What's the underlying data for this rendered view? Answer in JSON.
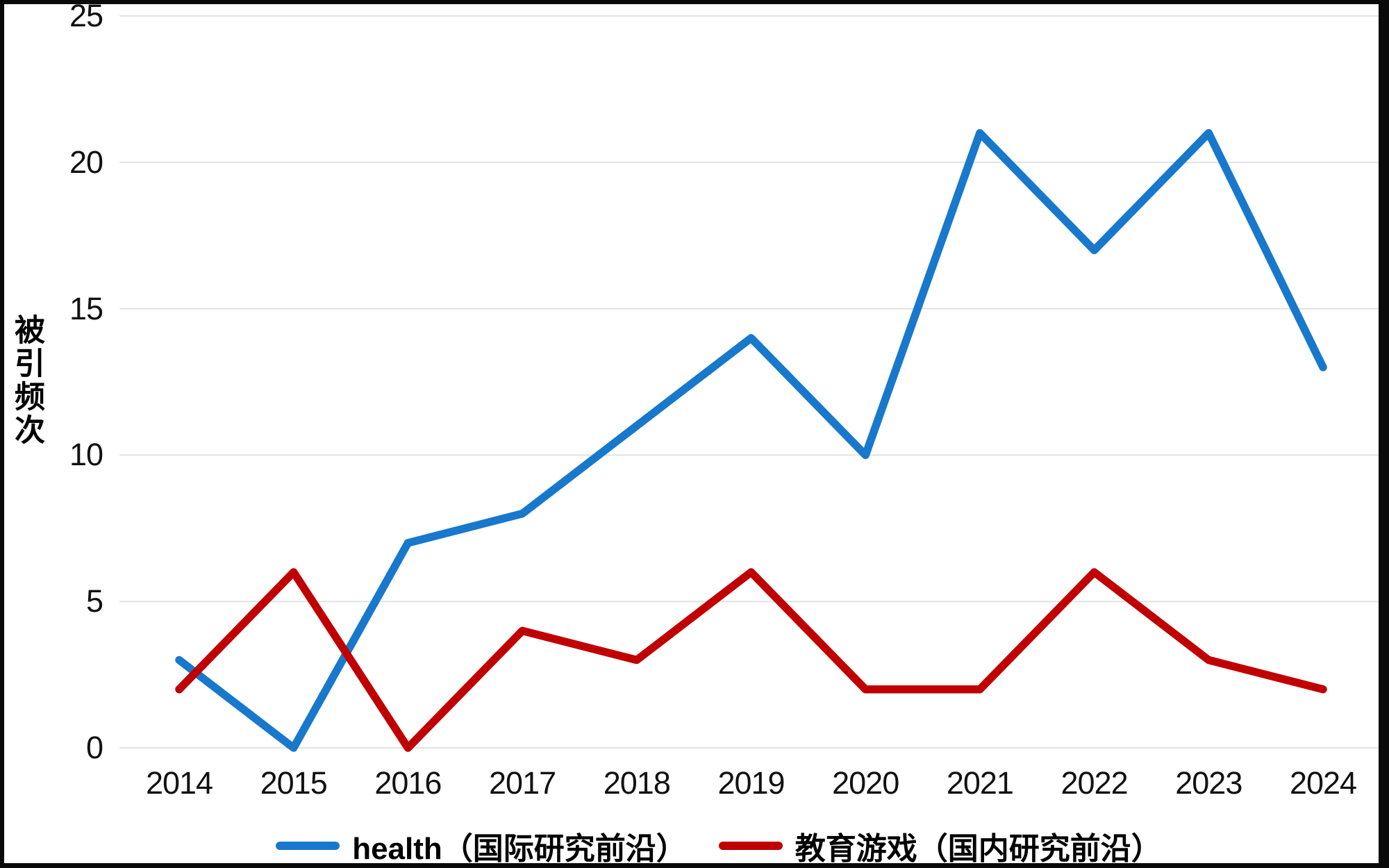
{
  "chart_data": {
    "type": "line",
    "title": "",
    "xlabel": "",
    "ylabel": "被引频次",
    "categories": [
      "2014",
      "2015",
      "2016",
      "2017",
      "2018",
      "2019",
      "2020",
      "2021",
      "2022",
      "2023",
      "2024"
    ],
    "series": [
      {
        "name": "health（国际研究前沿）",
        "color": "#1878CC",
        "values": [
          3,
          0,
          7,
          8,
          11,
          14,
          10,
          21,
          17,
          21,
          13
        ]
      },
      {
        "name": "教育游戏（国内研究前沿）",
        "color": "#C00000",
        "values": [
          2,
          6,
          0,
          4,
          3,
          6,
          2,
          2,
          6,
          3,
          2
        ]
      }
    ],
    "ylim": [
      0,
      25
    ],
    "yticks": [
      0,
      5,
      10,
      15,
      20,
      25
    ],
    "grid": true,
    "gridline_color": "#e2e2e2",
    "legend_position": "bottom",
    "frame_color": "#0a0a0a"
  }
}
